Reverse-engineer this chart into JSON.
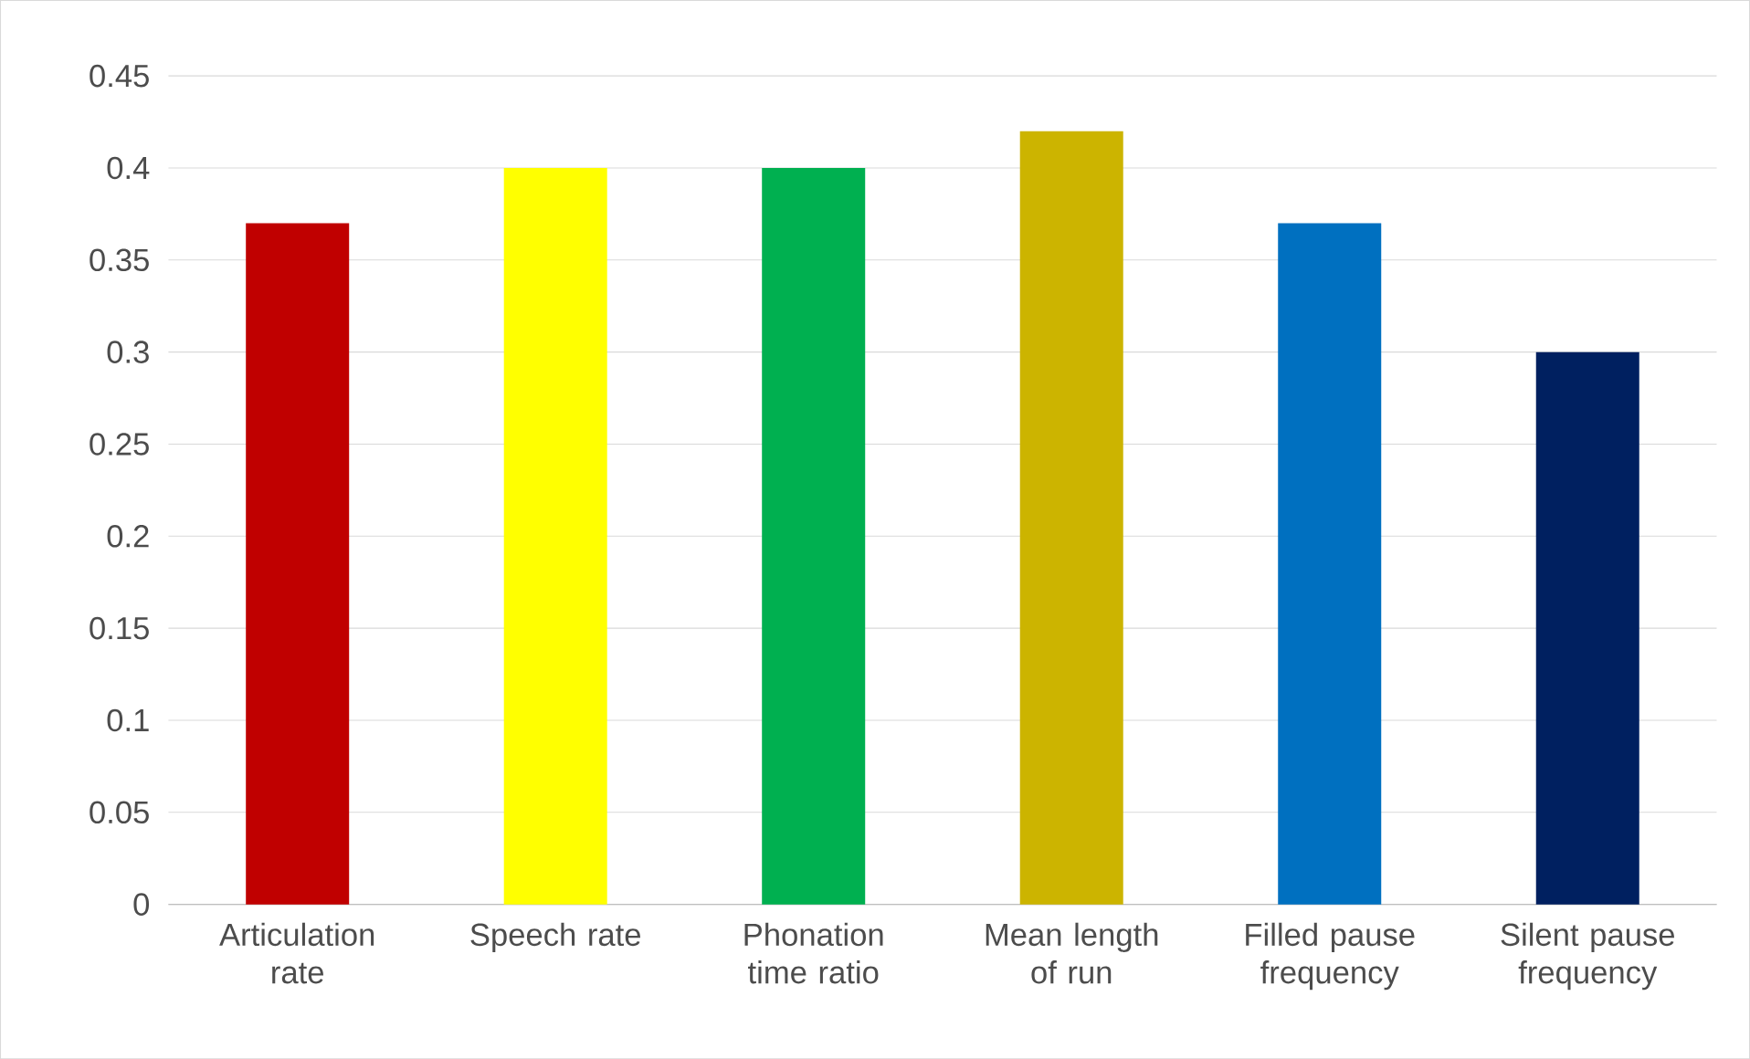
{
  "chart_data": {
    "type": "bar",
    "categories": [
      "Articulation rate",
      "Speech rate",
      "Phonation time ratio",
      "Mean length of run",
      "Filled pause frequency",
      "Silent pause frequency"
    ],
    "values": [
      0.37,
      0.4,
      0.4,
      0.42,
      0.37,
      0.3
    ],
    "colors": [
      "#c00000",
      "#ffff00",
      "#00b050",
      "#ccb400",
      "#0070c0",
      "#002060"
    ],
    "ylim": [
      0,
      0.45
    ],
    "yticks": [
      0,
      0.05,
      0.1,
      0.15,
      0.2,
      0.25,
      0.3,
      0.35,
      0.4,
      0.45
    ],
    "grid": "y"
  }
}
